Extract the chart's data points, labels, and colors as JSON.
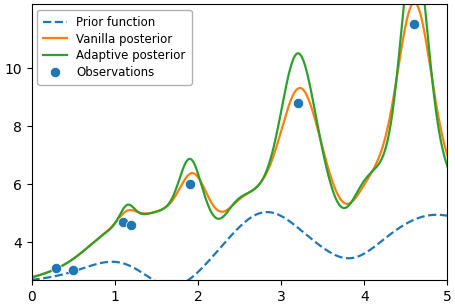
{
  "obs_x": [
    0.3,
    0.5,
    1.1,
    1.2,
    1.9,
    3.2,
    4.6
  ],
  "obs_y": [
    3.1,
    3.05,
    4.7,
    4.6,
    6.0,
    8.8,
    11.5
  ],
  "xlim": [
    0,
    5
  ],
  "ylim": [
    2.7,
    12.2
  ],
  "xticks": [
    0,
    1,
    2,
    3,
    4,
    5
  ],
  "yticks": [
    4,
    6,
    8,
    10
  ],
  "prior_color": "#1f77b4",
  "vanilla_color": "#ff7f0e",
  "adaptive_color": "#2ca02c",
  "obs_color": "#1f77b4",
  "legend_labels": [
    "Observations",
    "Prior function",
    "Vanilla posterior",
    "Adaptive posterior"
  ],
  "linewidth": 1.6,
  "obs_markersize": 55
}
